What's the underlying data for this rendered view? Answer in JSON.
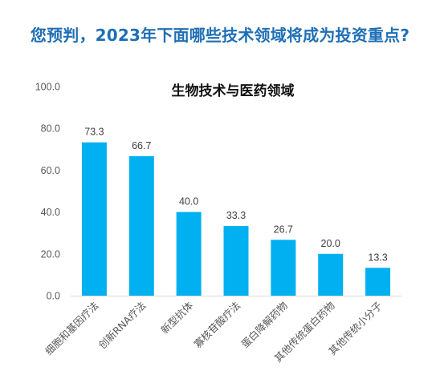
{
  "page": {
    "question": "您预判，2023年下面哪些技术领域将成为投资重点?"
  },
  "chart_data": {
    "type": "bar",
    "title": "生物技术与医药领域",
    "categories": [
      "细胞和基因疗法",
      "创新RNA疗法",
      "新型抗体",
      "寡核苷酸疗法",
      "蛋白降解药物",
      "其他传统蛋白药物",
      "其他传统小分子"
    ],
    "values": [
      73.3,
      66.7,
      40.0,
      33.3,
      26.7,
      20.0,
      13.3
    ],
    "data_labels": [
      "73.3",
      "66.7",
      "40.0",
      "33.3",
      "26.7",
      "20.0",
      "13.3"
    ],
    "yticks": [
      "0.0",
      "20.0",
      "40.0",
      "60.0",
      "80.0",
      "100.0"
    ],
    "ylim": [
      0,
      100
    ],
    "xlabel": "",
    "ylabel": "",
    "grid": false,
    "legend": "none",
    "colors": {
      "bar": "#00b0f0",
      "question": "#1f6fb5",
      "axis": "#d9d9d9"
    }
  }
}
